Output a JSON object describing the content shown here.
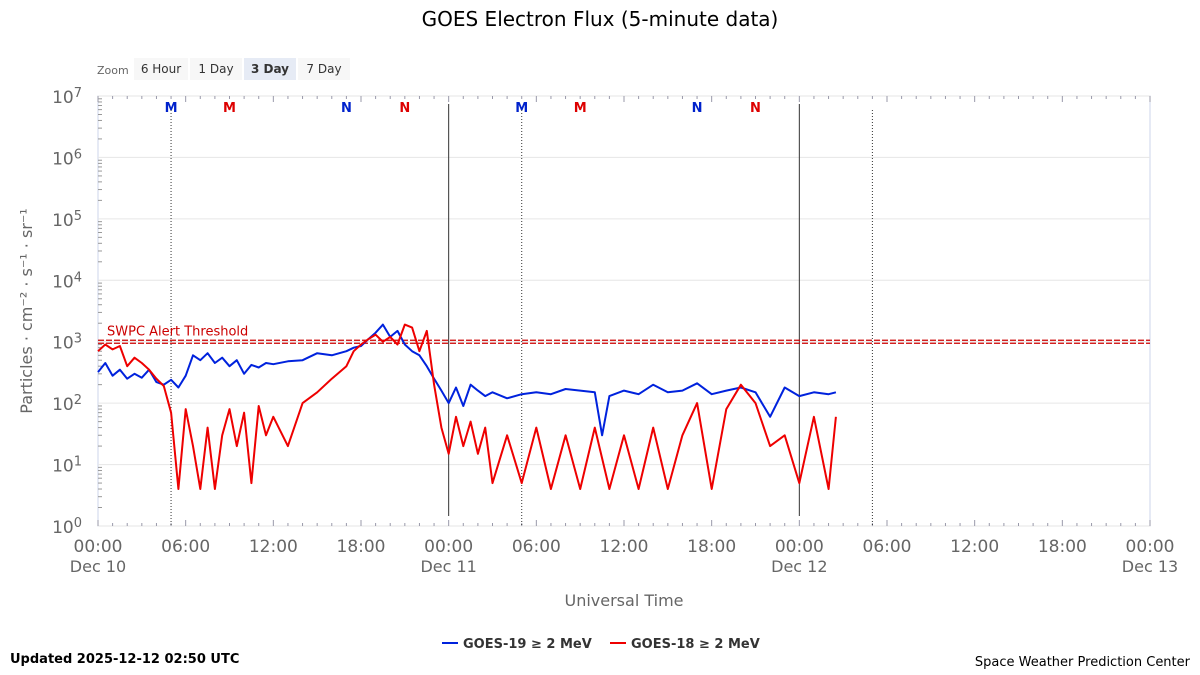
{
  "chart_data": {
    "type": "line",
    "title": "GOES Electron Flux (5-minute data)",
    "xlabel": "Universal Time",
    "ylabel": "Particles · cm⁻² · s⁻¹ · sr⁻¹",
    "y_scale": "log",
    "ylim": [
      1,
      10000000
    ],
    "y_ticks": [
      {
        "value": 1,
        "base": "10",
        "exp": "0"
      },
      {
        "value": 10,
        "base": "10",
        "exp": "1"
      },
      {
        "value": 100,
        "base": "10",
        "exp": "2"
      },
      {
        "value": 1000,
        "base": "10",
        "exp": "3"
      },
      {
        "value": 10000,
        "base": "10",
        "exp": "4"
      },
      {
        "value": 100000,
        "base": "10",
        "exp": "5"
      },
      {
        "value": 1000000,
        "base": "10",
        "exp": "6"
      },
      {
        "value": 10000000,
        "base": "10",
        "exp": "7"
      }
    ],
    "xlim": [
      "2025-12-10 00:00",
      "2025-12-13 00:00"
    ],
    "x_ticks": [
      {
        "time": "00:00",
        "date": "Dec 10"
      },
      {
        "time": "06:00",
        "date": ""
      },
      {
        "time": "12:00",
        "date": ""
      },
      {
        "time": "18:00",
        "date": ""
      },
      {
        "time": "00:00",
        "date": "Dec 11"
      },
      {
        "time": "06:00",
        "date": ""
      },
      {
        "time": "12:00",
        "date": ""
      },
      {
        "time": "18:00",
        "date": ""
      },
      {
        "time": "00:00",
        "date": "Dec 12"
      },
      {
        "time": "06:00",
        "date": ""
      },
      {
        "time": "12:00",
        "date": ""
      },
      {
        "time": "18:00",
        "date": ""
      },
      {
        "time": "00:00",
        "date": "Dec 13"
      }
    ],
    "threshold": {
      "label": "SWPC Alert Threshold",
      "value": 1000,
      "color": "#cc0000"
    },
    "day_lines": [
      "2025-12-11 00:00",
      "2025-12-12 00:00"
    ],
    "markers": [
      {
        "label": "M",
        "time": "2025-12-10 05:00",
        "color": "#0022cc",
        "line": true
      },
      {
        "label": "M",
        "time": "2025-12-10 09:00",
        "color": "#dd0000",
        "line": false
      },
      {
        "label": "N",
        "time": "2025-12-10 17:00",
        "color": "#0022cc",
        "line": false
      },
      {
        "label": "N",
        "time": "2025-12-10 21:00",
        "color": "#dd0000",
        "line": false
      },
      {
        "label": "M",
        "time": "2025-12-11 05:00",
        "color": "#0022cc",
        "line": true
      },
      {
        "label": "M",
        "time": "2025-12-11 09:00",
        "color": "#dd0000",
        "line": false
      },
      {
        "label": "N",
        "time": "2025-12-11 17:00",
        "color": "#0022cc",
        "line": false
      },
      {
        "label": "N",
        "time": "2025-12-11 21:00",
        "color": "#dd0000",
        "line": false
      },
      {
        "label": "",
        "time": "2025-12-12 05:00",
        "color": "#0022cc",
        "line": true
      }
    ],
    "series": [
      {
        "name": "GOES-19 ≥ 2 MeV",
        "color": "#0022dd",
        "points": [
          [
            "2025-12-10 00:00",
            320
          ],
          [
            "2025-12-10 00:30",
            450
          ],
          [
            "2025-12-10 01:00",
            280
          ],
          [
            "2025-12-10 01:30",
            350
          ],
          [
            "2025-12-10 02:00",
            250
          ],
          [
            "2025-12-10 02:30",
            300
          ],
          [
            "2025-12-10 03:00",
            260
          ],
          [
            "2025-12-10 03:30",
            350
          ],
          [
            "2025-12-10 04:00",
            220
          ],
          [
            "2025-12-10 04:30",
            200
          ],
          [
            "2025-12-10 05:00",
            240
          ],
          [
            "2025-12-10 05:30",
            180
          ],
          [
            "2025-12-10 06:00",
            280
          ],
          [
            "2025-12-10 06:30",
            600
          ],
          [
            "2025-12-10 07:00",
            500
          ],
          [
            "2025-12-10 07:30",
            650
          ],
          [
            "2025-12-10 08:00",
            450
          ],
          [
            "2025-12-10 08:30",
            550
          ],
          [
            "2025-12-10 09:00",
            400
          ],
          [
            "2025-12-10 09:30",
            500
          ],
          [
            "2025-12-10 10:00",
            300
          ],
          [
            "2025-12-10 10:30",
            420
          ],
          [
            "2025-12-10 11:00",
            380
          ],
          [
            "2025-12-10 11:30",
            450
          ],
          [
            "2025-12-10 12:00",
            430
          ],
          [
            "2025-12-10 13:00",
            480
          ],
          [
            "2025-12-10 14:00",
            500
          ],
          [
            "2025-12-10 15:00",
            650
          ],
          [
            "2025-12-10 16:00",
            600
          ],
          [
            "2025-12-10 17:00",
            700
          ],
          [
            "2025-12-10 17:30",
            800
          ],
          [
            "2025-12-10 18:00",
            850
          ],
          [
            "2025-12-10 18:30",
            1100
          ],
          [
            "2025-12-10 19:00",
            1400
          ],
          [
            "2025-12-10 19:30",
            1900
          ],
          [
            "2025-12-10 20:00",
            1200
          ],
          [
            "2025-12-10 20:30",
            1500
          ],
          [
            "2025-12-10 21:00",
            900
          ],
          [
            "2025-12-10 21:30",
            700
          ],
          [
            "2025-12-10 22:00",
            600
          ],
          [
            "2025-12-10 22:30",
            400
          ],
          [
            "2025-12-10 23:00",
            250
          ],
          [
            "2025-12-10 23:30",
            160
          ],
          [
            "2025-12-11 00:00",
            100
          ],
          [
            "2025-12-11 00:30",
            180
          ],
          [
            "2025-12-11 01:00",
            90
          ],
          [
            "2025-12-11 01:30",
            200
          ],
          [
            "2025-12-11 02:00",
            160
          ],
          [
            "2025-12-11 02:30",
            130
          ],
          [
            "2025-12-11 03:00",
            150
          ],
          [
            "2025-12-11 04:00",
            120
          ],
          [
            "2025-12-11 05:00",
            140
          ],
          [
            "2025-12-11 06:00",
            150
          ],
          [
            "2025-12-11 07:00",
            140
          ],
          [
            "2025-12-11 08:00",
            170
          ],
          [
            "2025-12-11 09:00",
            160
          ],
          [
            "2025-12-11 10:00",
            150
          ],
          [
            "2025-12-11 10:30",
            30
          ],
          [
            "2025-12-11 11:00",
            130
          ],
          [
            "2025-12-11 12:00",
            160
          ],
          [
            "2025-12-11 13:00",
            140
          ],
          [
            "2025-12-11 14:00",
            200
          ],
          [
            "2025-12-11 15:00",
            150
          ],
          [
            "2025-12-11 16:00",
            160
          ],
          [
            "2025-12-11 17:00",
            210
          ],
          [
            "2025-12-11 18:00",
            140
          ],
          [
            "2025-12-11 19:00",
            160
          ],
          [
            "2025-12-11 20:00",
            180
          ],
          [
            "2025-12-11 21:00",
            150
          ],
          [
            "2025-12-11 22:00",
            60
          ],
          [
            "2025-12-11 23:00",
            180
          ],
          [
            "2025-12-12 00:00",
            130
          ],
          [
            "2025-12-12 01:00",
            150
          ],
          [
            "2025-12-12 02:00",
            140
          ],
          [
            "2025-12-12 02:30",
            150
          ]
        ]
      },
      {
        "name": "GOES-18 ≥ 2 MeV",
        "color": "#ee0000",
        "points": [
          [
            "2025-12-10 00:00",
            700
          ],
          [
            "2025-12-10 00:30",
            900
          ],
          [
            "2025-12-10 01:00",
            750
          ],
          [
            "2025-12-10 01:30",
            850
          ],
          [
            "2025-12-10 02:00",
            400
          ],
          [
            "2025-12-10 02:30",
            550
          ],
          [
            "2025-12-10 03:00",
            450
          ],
          [
            "2025-12-10 03:30",
            350
          ],
          [
            "2025-12-10 04:00",
            250
          ],
          [
            "2025-12-10 04:30",
            190
          ],
          [
            "2025-12-10 05:00",
            70
          ],
          [
            "2025-12-10 05:30",
            4
          ],
          [
            "2025-12-10 06:00",
            80
          ],
          [
            "2025-12-10 06:30",
            20
          ],
          [
            "2025-12-10 07:00",
            4
          ],
          [
            "2025-12-10 07:30",
            40
          ],
          [
            "2025-12-10 08:00",
            4
          ],
          [
            "2025-12-10 08:30",
            30
          ],
          [
            "2025-12-10 09:00",
            80
          ],
          [
            "2025-12-10 09:30",
            20
          ],
          [
            "2025-12-10 10:00",
            70
          ],
          [
            "2025-12-10 10:30",
            5
          ],
          [
            "2025-12-10 11:00",
            90
          ],
          [
            "2025-12-10 11:30",
            30
          ],
          [
            "2025-12-10 12:00",
            60
          ],
          [
            "2025-12-10 13:00",
            20
          ],
          [
            "2025-12-10 14:00",
            100
          ],
          [
            "2025-12-10 15:00",
            150
          ],
          [
            "2025-12-10 16:00",
            250
          ],
          [
            "2025-12-10 17:00",
            400
          ],
          [
            "2025-12-10 17:30",
            700
          ],
          [
            "2025-12-10 18:00",
            900
          ],
          [
            "2025-12-10 18:30",
            1100
          ],
          [
            "2025-12-10 19:00",
            1300
          ],
          [
            "2025-12-10 19:30",
            1000
          ],
          [
            "2025-12-10 20:00",
            1200
          ],
          [
            "2025-12-10 20:30",
            900
          ],
          [
            "2025-12-10 21:00",
            1900
          ],
          [
            "2025-12-10 21:30",
            1700
          ],
          [
            "2025-12-10 22:00",
            700
          ],
          [
            "2025-12-10 22:30",
            1500
          ],
          [
            "2025-12-10 23:00",
            200
          ],
          [
            "2025-12-10 23:30",
            40
          ],
          [
            "2025-12-11 00:00",
            15
          ],
          [
            "2025-12-11 00:30",
            60
          ],
          [
            "2025-12-11 01:00",
            20
          ],
          [
            "2025-12-11 01:30",
            50
          ],
          [
            "2025-12-11 02:00",
            15
          ],
          [
            "2025-12-11 02:30",
            40
          ],
          [
            "2025-12-11 03:00",
            5
          ],
          [
            "2025-12-11 04:00",
            30
          ],
          [
            "2025-12-11 05:00",
            5
          ],
          [
            "2025-12-11 06:00",
            40
          ],
          [
            "2025-12-11 07:00",
            4
          ],
          [
            "2025-12-11 08:00",
            30
          ],
          [
            "2025-12-11 09:00",
            4
          ],
          [
            "2025-12-11 10:00",
            40
          ],
          [
            "2025-12-11 11:00",
            4
          ],
          [
            "2025-12-11 12:00",
            30
          ],
          [
            "2025-12-11 13:00",
            4
          ],
          [
            "2025-12-11 14:00",
            40
          ],
          [
            "2025-12-11 15:00",
            4
          ],
          [
            "2025-12-11 16:00",
            30
          ],
          [
            "2025-12-11 17:00",
            100
          ],
          [
            "2025-12-11 18:00",
            4
          ],
          [
            "2025-12-11 19:00",
            80
          ],
          [
            "2025-12-11 20:00",
            200
          ],
          [
            "2025-12-11 21:00",
            100
          ],
          [
            "2025-12-11 22:00",
            20
          ],
          [
            "2025-12-11 23:00",
            30
          ],
          [
            "2025-12-12 00:00",
            5
          ],
          [
            "2025-12-12 01:00",
            60
          ],
          [
            "2025-12-12 02:00",
            4
          ],
          [
            "2025-12-12 02:30",
            60
          ]
        ]
      }
    ],
    "legend_position": "bottom"
  },
  "zoom": {
    "label": "Zoom",
    "buttons": [
      {
        "label": "6 Hour",
        "active": false
      },
      {
        "label": "1 Day",
        "active": false
      },
      {
        "label": "3 Day",
        "active": true
      },
      {
        "label": "7 Day",
        "active": false
      }
    ]
  },
  "footer": {
    "updated": "Updated 2025-12-12 02:50 UTC",
    "credit": "Space Weather Prediction Center"
  }
}
